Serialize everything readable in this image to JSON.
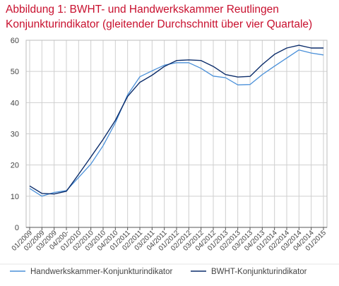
{
  "chart_data": {
    "type": "line",
    "title": "Abbildung 1: BWHT- und Handwerkskammer  Reutlingen",
    "subtitle": "Konjunkturindikator (gleitender Durchschnitt über vier Quartale)",
    "xlabel": "",
    "ylabel": "",
    "ylim": [
      0,
      60
    ],
    "yticks": [
      0,
      10,
      20,
      30,
      40,
      50,
      60
    ],
    "grid": true,
    "legend_position": "bottom",
    "categories": [
      "01/2009",
      "02/2009",
      "03/2009",
      "04/200-",
      "01/2010",
      "02/2010",
      "03/2010",
      "04/2010",
      "01/2011",
      "02/2011",
      "03/2011",
      "04/2011",
      "01/2012",
      "02/2012",
      "03/2012",
      "04/2012",
      "01/2013",
      "02/2013",
      "03/2013",
      "04/2013",
      "01/2014",
      "02/2014",
      "03/2014",
      "04/2014",
      "01/2015"
    ],
    "x_tick_labels": [
      "01/2009",
      "02/2009",
      "03/2009",
      "04/200-",
      "01/2010",
      "02/2010",
      "03/2010",
      "04/2010",
      "01/2011",
      "02/2011",
      "03/2011",
      "04/2011",
      "01/2012",
      "02/2012",
      "03/2012",
      "04/2012",
      "01/2013",
      "02/2013",
      "03/2013",
      "04/2013",
      "01/2014",
      "02/2014",
      "03/2014",
      "04/2014",
      "01/2015"
    ],
    "series": [
      {
        "name": "Handwerkskammer-Konjunkturindikator",
        "color": "#4a90d9",
        "values": [
          12.5,
          10.0,
          11.2,
          11.8,
          16.0,
          20.3,
          26.2,
          33.5,
          42.5,
          48.3,
          50.2,
          52.0,
          52.8,
          52.8,
          51.0,
          48.5,
          48.0,
          45.7,
          45.8,
          49.0,
          51.7,
          54.3,
          56.9,
          55.9,
          55.3
        ]
      },
      {
        "name": "BWHT-Konjunkturindikator",
        "color": "#0c2d6b",
        "values": [
          13.3,
          10.9,
          10.7,
          11.6,
          17.0,
          22.6,
          28.2,
          34.3,
          42.0,
          46.5,
          48.8,
          51.6,
          53.5,
          53.7,
          53.5,
          51.6,
          49.0,
          48.2,
          48.4,
          52.2,
          55.5,
          57.5,
          58.4,
          57.5,
          57.5
        ]
      }
    ]
  },
  "colors": {
    "title": "#c8102e",
    "grid": "#cfcfcf",
    "axis": "#555555"
  }
}
